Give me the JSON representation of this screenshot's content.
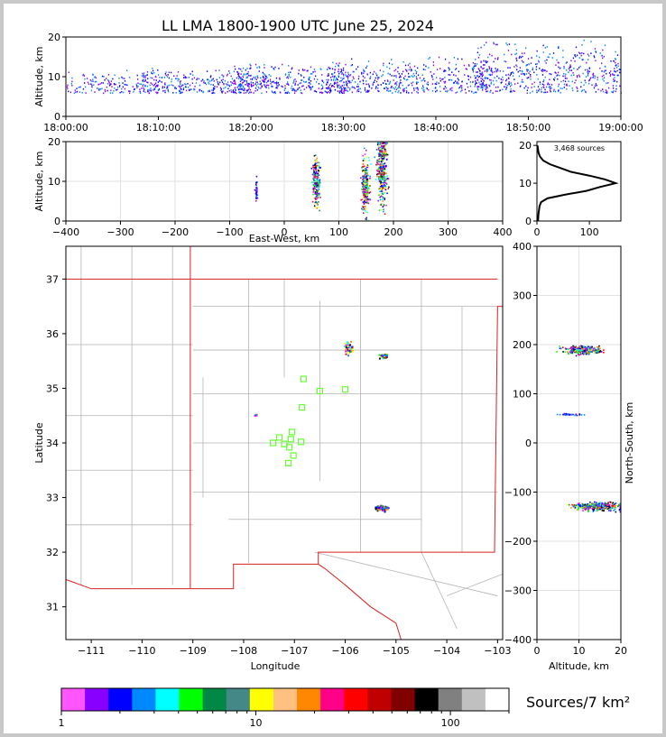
{
  "title": "LL LMA 1800-1900 UTC June 25, 2024",
  "colors": {
    "border": "#c8c8c8",
    "state_line": "#dd2020",
    "county_line": "#b4b4b4",
    "station": "#66ff33"
  },
  "chart_data": [
    {
      "id": "time_height",
      "type": "scatter",
      "ylabel": "Altitude, km",
      "ylim": [
        0,
        20
      ],
      "yticks": [
        "0",
        "10",
        "20"
      ],
      "xticks": [
        "18:00:00",
        "18:10:00",
        "18:20:00",
        "18:30:00",
        "18:40:00",
        "18:50:00",
        "19:00:00"
      ],
      "xrange_minutes": [
        0,
        60
      ],
      "clusters": [
        {
          "t": [
            0,
            10
          ],
          "alt": [
            6,
            12
          ],
          "density": 0.3
        },
        {
          "t": [
            8,
            20
          ],
          "alt": [
            6,
            13
          ],
          "density": 0.6
        },
        {
          "t": [
            18,
            30
          ],
          "alt": [
            6,
            14
          ],
          "density": 0.7
        },
        {
          "t": [
            28,
            38
          ],
          "alt": [
            6,
            15
          ],
          "density": 0.6
        },
        {
          "t": [
            38,
            46
          ],
          "alt": [
            6,
            16
          ],
          "density": 0.4
        },
        {
          "t": [
            44,
            60
          ],
          "alt": [
            6,
            20
          ],
          "density": 1.0
        }
      ]
    },
    {
      "id": "east_west",
      "type": "scatter",
      "xlabel": "East-West, km",
      "ylabel": "Altitude, km",
      "xlim": [
        -400,
        400
      ],
      "ylim": [
        0,
        20
      ],
      "xticks": [
        "−400",
        "−300",
        "−200",
        "−100",
        "0",
        "100",
        "200",
        "300",
        "400"
      ],
      "yticks": [
        "0",
        "10",
        "20"
      ],
      "clusters": [
        {
          "x": -52,
          "alt": 8,
          "w": 4,
          "h": 5,
          "n": 40
        },
        {
          "x": 58,
          "alt": 10,
          "w": 12,
          "h": 10,
          "n": 200
        },
        {
          "x": 148,
          "alt": 9,
          "w": 12,
          "h": 12,
          "n": 250
        },
        {
          "x": 178,
          "alt": 14,
          "w": 16,
          "h": 16,
          "n": 400
        }
      ]
    },
    {
      "id": "alt_histogram",
      "type": "line",
      "annotation": "3,468 sources",
      "xticks": [
        "0",
        "100"
      ],
      "yticks": [
        "0",
        "10",
        "20"
      ],
      "xlim": [
        0,
        160
      ],
      "ylim": [
        0,
        21
      ],
      "alt": [
        0,
        2,
        4,
        5,
        6,
        7,
        8,
        9,
        10,
        11,
        12,
        13,
        14,
        15,
        16,
        17,
        18,
        19,
        20
      ],
      "count": [
        2,
        3,
        5,
        8,
        20,
        55,
        95,
        120,
        150,
        130,
        100,
        65,
        45,
        25,
        12,
        6,
        3,
        2,
        1
      ]
    },
    {
      "id": "plan_view",
      "type": "scatter",
      "xlabel": "Longitude",
      "ylabel": "Latitude",
      "xlim": [
        -111.5,
        -102.9
      ],
      "ylim": [
        30.4,
        37.6
      ],
      "xticks": [
        "−111",
        "−110",
        "−109",
        "−108",
        "−107",
        "−106",
        "−105",
        "−104",
        "−103"
      ],
      "yticks": [
        "31",
        "32",
        "33",
        "34",
        "35",
        "36",
        "37"
      ],
      "storms": [
        {
          "lon": -105.95,
          "lat": 35.75,
          "w": 0.12,
          "h": 0.2,
          "n": 70
        },
        {
          "lon": -105.25,
          "lat": 35.6,
          "w": 0.12,
          "h": 0.06,
          "n": 60
        },
        {
          "lon": -107.78,
          "lat": 34.52,
          "w": 0.05,
          "h": 0.03,
          "n": 8
        },
        {
          "lon": -105.3,
          "lat": 32.82,
          "w": 0.2,
          "h": 0.08,
          "n": 90
        }
      ],
      "stations": [
        {
          "lon": -106.82,
          "lat": 35.17
        },
        {
          "lon": -106.5,
          "lat": 34.95
        },
        {
          "lon": -106.0,
          "lat": 34.98
        },
        {
          "lon": -106.85,
          "lat": 34.65
        },
        {
          "lon": -107.05,
          "lat": 34.2
        },
        {
          "lon": -107.3,
          "lat": 34.1
        },
        {
          "lon": -107.07,
          "lat": 34.07
        },
        {
          "lon": -107.42,
          "lat": 34.0
        },
        {
          "lon": -107.2,
          "lat": 33.98
        },
        {
          "lon": -106.87,
          "lat": 34.02
        },
        {
          "lon": -107.1,
          "lat": 33.92
        },
        {
          "lon": -107.02,
          "lat": 33.77
        },
        {
          "lon": -107.12,
          "lat": 33.63
        }
      ]
    },
    {
      "id": "north_south",
      "type": "scatter",
      "xlabel": "Altitude, km",
      "ylabel": "North-South, km",
      "xlim": [
        0,
        20
      ],
      "ylim": [
        -400,
        400
      ],
      "xticks": [
        "0",
        "10",
        "20"
      ],
      "yticks": [
        "400",
        "300",
        "200",
        "100",
        "0",
        "−100",
        "−200",
        "−300",
        "−400"
      ],
      "clusters": [
        {
          "alt": 11,
          "y": 190,
          "w": 8,
          "h": 14,
          "n": 300
        },
        {
          "alt": 8,
          "y": 59,
          "w": 5,
          "h": 3,
          "n": 30
        },
        {
          "alt": 14,
          "y": -128,
          "w": 10,
          "h": 14,
          "n": 350
        }
      ]
    },
    {
      "id": "colorbar",
      "type": "heatmap",
      "label": "Sources/7 km²",
      "scale": "log",
      "range": [
        1,
        200
      ],
      "ticks": [
        "1",
        "10",
        "100"
      ],
      "colors": [
        "#ff55ff",
        "#8800ff",
        "#0000ff",
        "#0088ff",
        "#00ffff",
        "#00ff00",
        "#008844",
        "#448888",
        "#ffff00",
        "#ffc080",
        "#ff8800",
        "#ff0088",
        "#ff0000",
        "#c00000",
        "#800000",
        "#000000",
        "#808080",
        "#c0c0c0",
        "#ffffff"
      ]
    }
  ]
}
